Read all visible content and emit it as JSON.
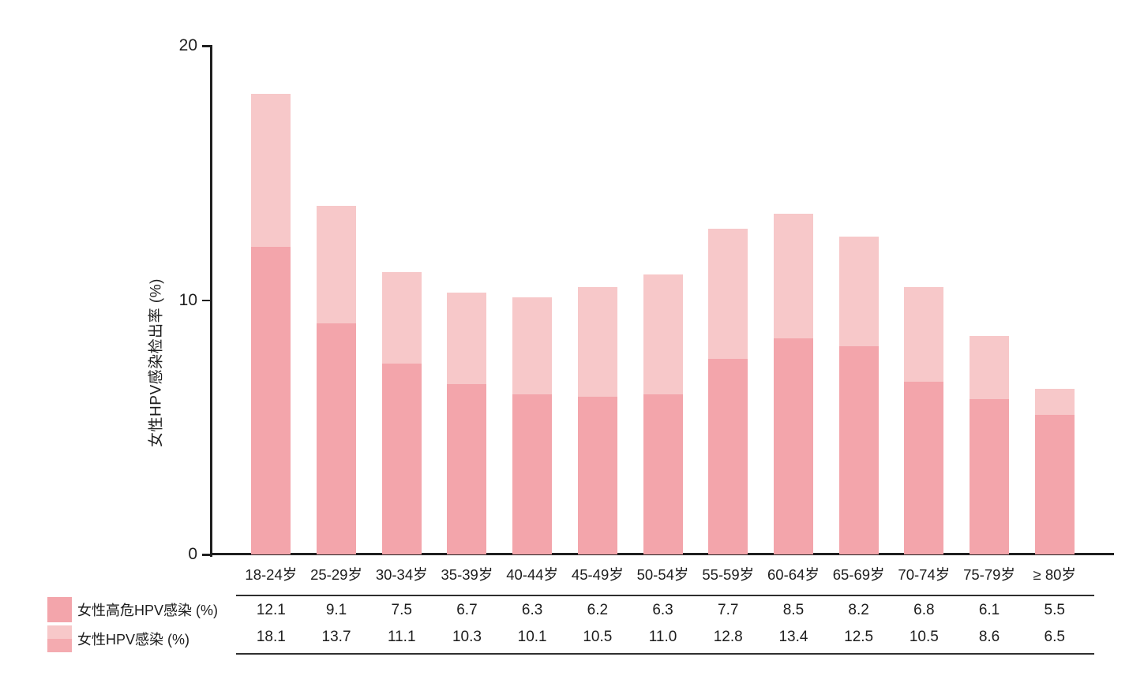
{
  "chart_data": {
    "type": "bar",
    "subtype": "overlay",
    "title": "",
    "ylabel": "女性HPV感染检出率 (%)",
    "xlabel": "",
    "ylim": [
      0,
      20
    ],
    "yticks": [
      0,
      10,
      20
    ],
    "grid": false,
    "legend_position": "bottom-left",
    "categories": [
      "18-24岁",
      "25-29岁",
      "30-34岁",
      "35-39岁",
      "40-44岁",
      "45-49岁",
      "50-54岁",
      "55-59岁",
      "60-64岁",
      "65-69岁",
      "70-74岁",
      "75-79岁",
      "≥ 80岁"
    ],
    "series": [
      {
        "name": "女性高危HPV感染 (%)",
        "color": "#f3a5ab",
        "values": [
          12.1,
          9.1,
          7.5,
          6.7,
          6.3,
          6.2,
          6.3,
          7.7,
          8.5,
          8.2,
          6.8,
          6.1,
          5.5
        ]
      },
      {
        "name": "女性HPV感染 (%)",
        "color": "#f7c8c9",
        "values": [
          18.1,
          13.7,
          11.1,
          10.3,
          10.1,
          10.5,
          11.0,
          12.8,
          13.4,
          12.5,
          10.5,
          8.6,
          6.5
        ]
      }
    ],
    "legend_swatch_total_colors": [
      "#f7c8c9",
      "#f4abb0"
    ],
    "axis_color": "#1f1f1f",
    "text_color": "#1d1d1d",
    "table_rule_color": "#2f2f2f"
  }
}
